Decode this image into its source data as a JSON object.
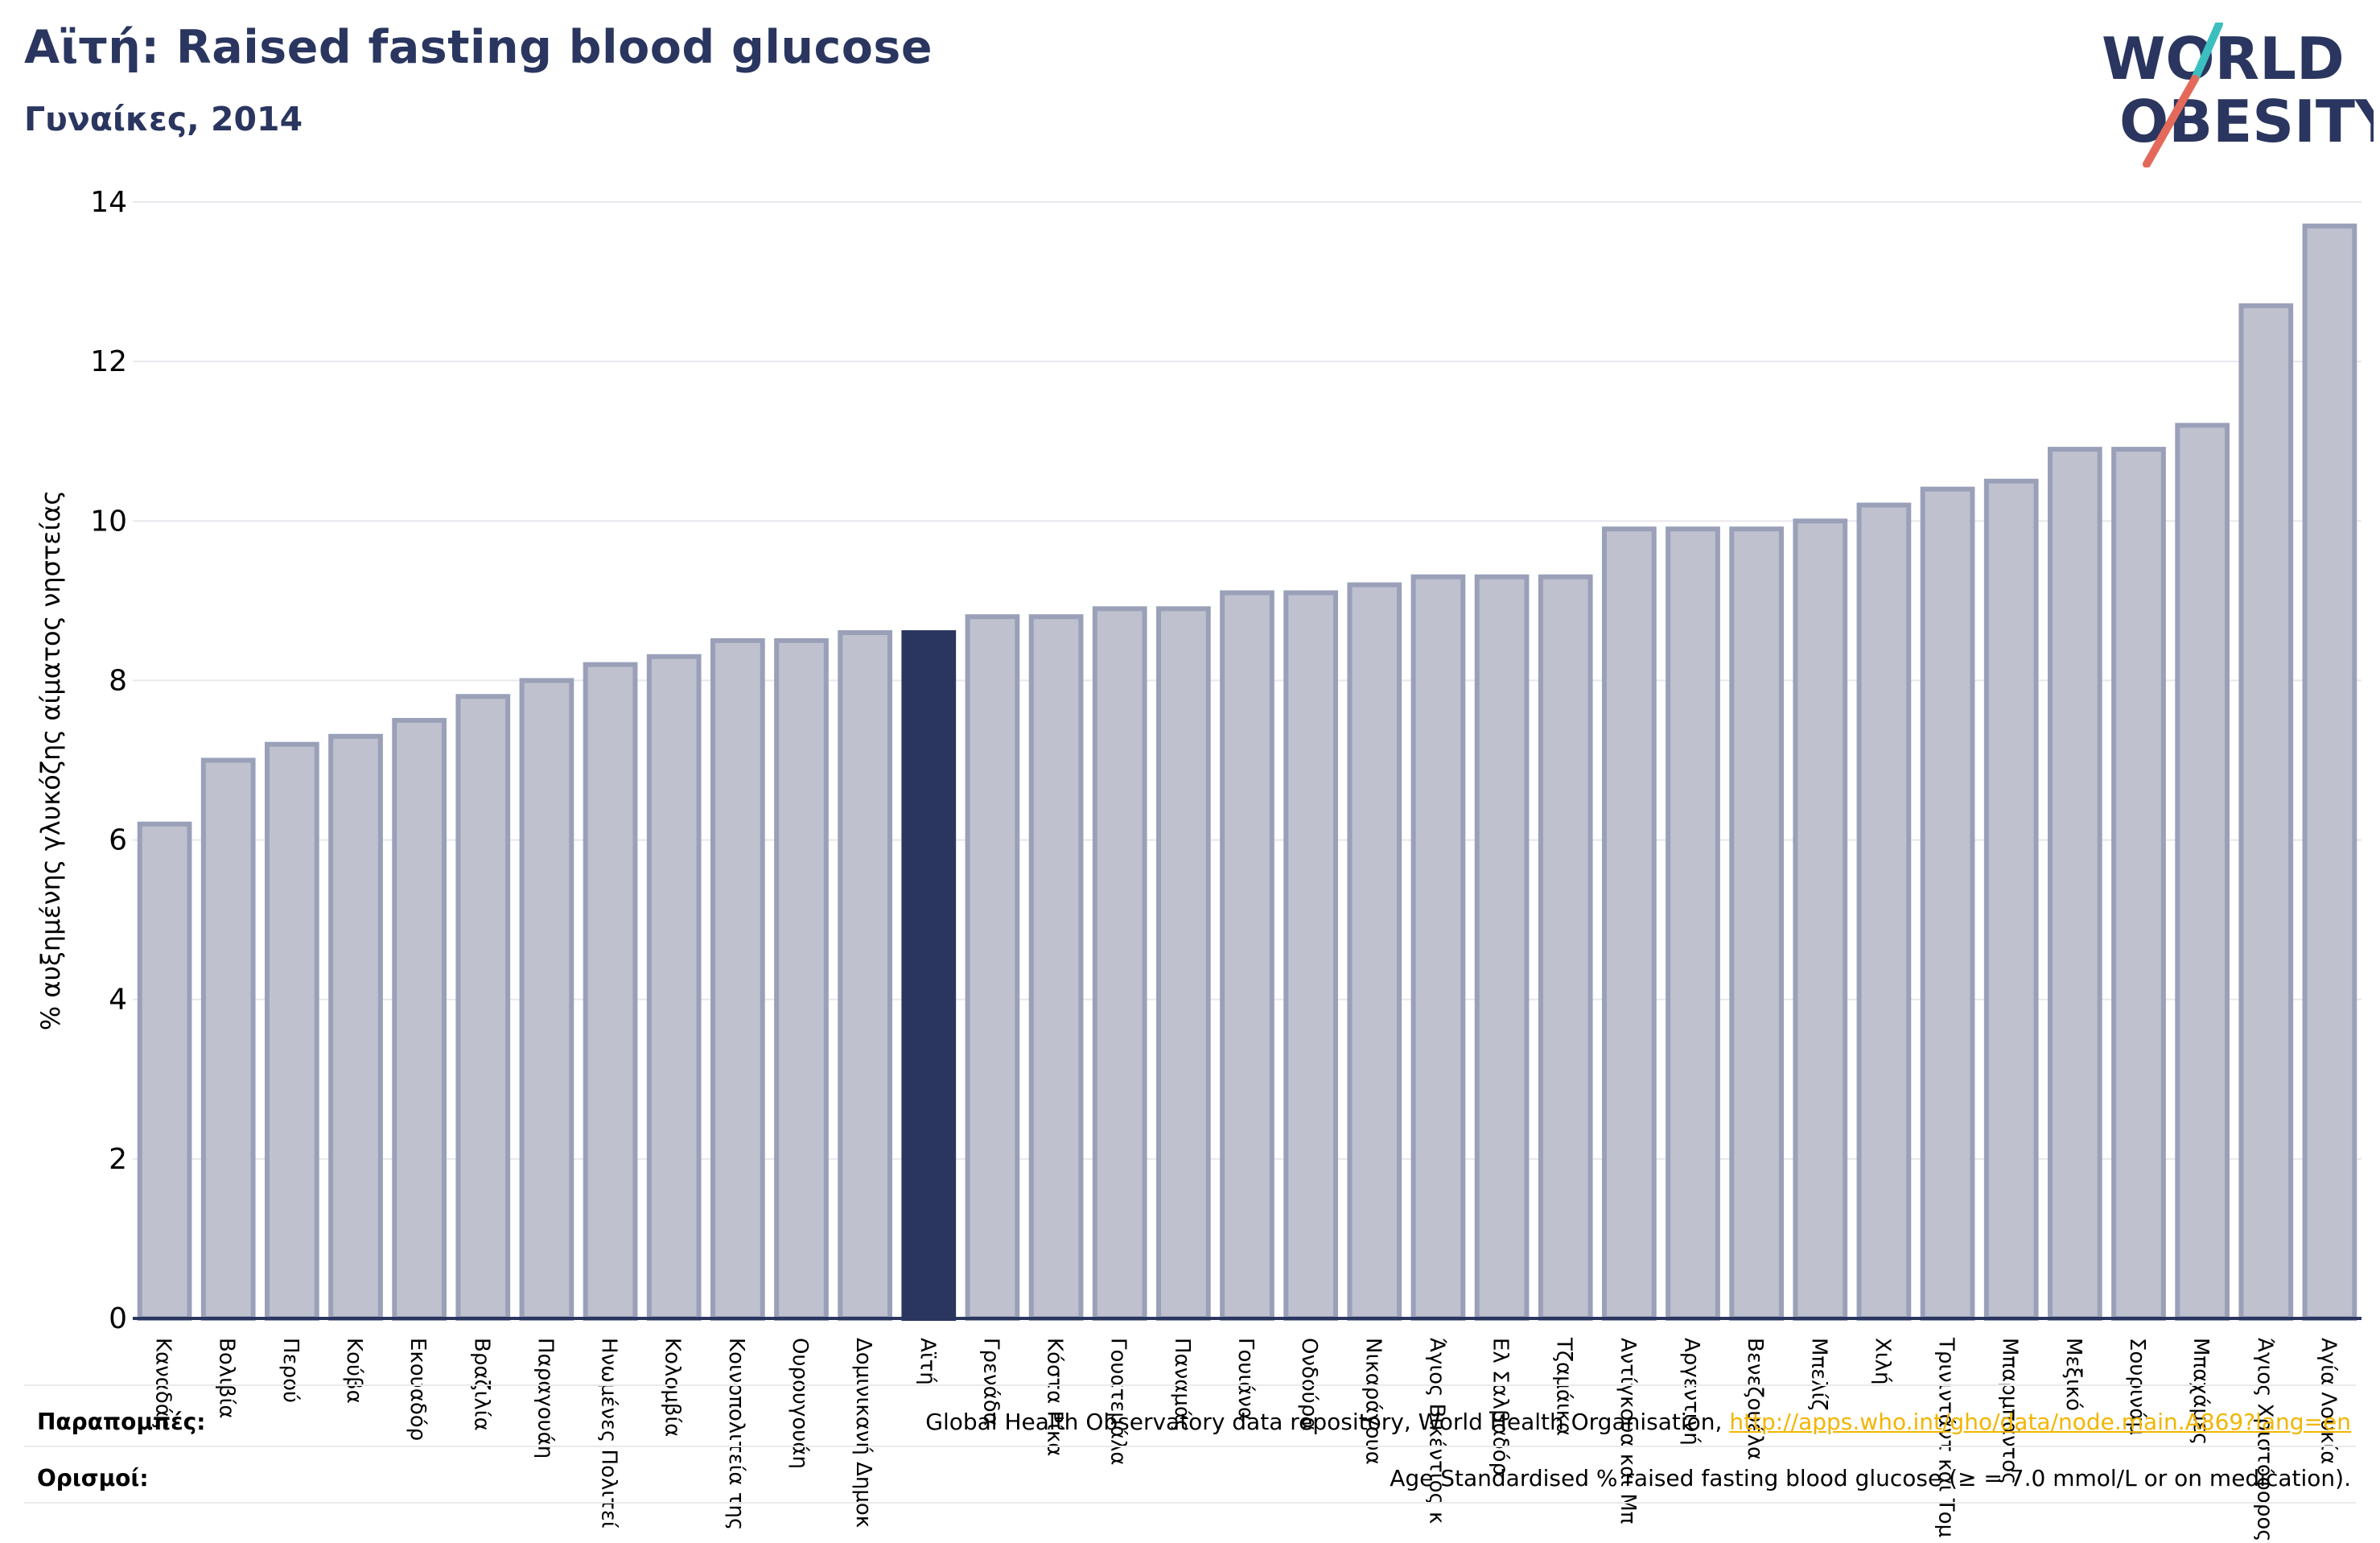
{
  "header": {
    "title": "Αϊτή: Raised fasting blood glucose",
    "subtitle": "Γυναίκες, 2014"
  },
  "logo": {
    "line1": "WORLD",
    "line2": "OBESITY",
    "colors": {
      "text": "#2a365f",
      "slash_top": "#3bbfbf",
      "slash_bottom": "#e36a5a"
    }
  },
  "colors": {
    "bar_fill": "#bfc1ce",
    "bar_stroke": "#9aa0b8",
    "highlight": "#2a365f",
    "axis": "#2a365f",
    "grid": "#e8e8ee"
  },
  "chart_data": {
    "type": "bar",
    "ylabel": "% αυξημένης γλυκόζης αίματος νηστείας",
    "ylim": [
      0,
      14
    ],
    "yticks": [
      0,
      2,
      4,
      6,
      8,
      10,
      12,
      14
    ],
    "grid": true,
    "highlight": "Αϊτή",
    "categories": [
      "Καναδάς",
      "Βολιβία",
      "Περού",
      "Κούβα",
      "Εκουαδόρ",
      "Βραζιλία",
      "Παραγουάη",
      "Ηνωμένες Πολιτεί",
      "Κολομβία",
      "Κοινοπολιτεία της",
      "Ουρουγουάη",
      "Δομινικανή Δημοκ",
      "Αϊτή",
      "Γρενάδα",
      "Κόστα Ρίκα",
      "Γουατεμάλα",
      "Παναμάς",
      "Γουιάνα",
      "Ονδούρα",
      "Νικαράγουα",
      "Άγιος Βικέντιος κ",
      "Ελ Σαλβαδόρ",
      "Τζαμάικα",
      "Αντίγκουα και Μπ",
      "Αργεντινή",
      "Βενεζουέλα",
      "Μπελίζ",
      "Χιλή",
      "Τρινιντάντ και Τομ",
      "Μπαρμπάντος",
      "Μεξικό",
      "Σουρινάμ",
      "Μπαχάμες",
      "Άγιος Χριστόφορος",
      "Αγία Λουκία"
    ],
    "values": [
      6.2,
      7.0,
      7.2,
      7.3,
      7.5,
      7.8,
      8.0,
      8.2,
      8.3,
      8.5,
      8.5,
      8.6,
      8.6,
      8.8,
      8.8,
      8.9,
      8.9,
      9.1,
      9.1,
      9.2,
      9.3,
      9.3,
      9.3,
      9.9,
      9.9,
      9.9,
      10.0,
      10.2,
      10.4,
      10.5,
      10.9,
      10.9,
      11.2,
      12.7,
      13.7
    ]
  },
  "footer": {
    "sources_label": "Παραπομπές:",
    "sources_text": "Global Health Observatory data repository, World Health Organisation, ",
    "sources_link": "http://apps.who.int/gho/data/node.main.A869?lang=en",
    "definitions_label": "Ορισμοί:",
    "definitions_text": "Age Standardised % raised fasting blood glucose (≥ = 7.0 mmol/L or on medication)."
  }
}
